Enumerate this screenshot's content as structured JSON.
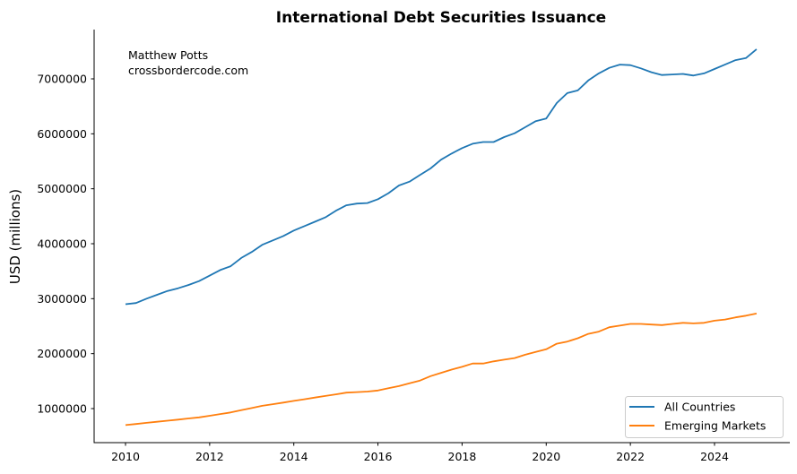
{
  "chart_data": {
    "type": "line",
    "title": "International Debt Securities Issuance",
    "xlabel": "",
    "ylabel": "USD (millions)",
    "annotation": [
      "Matthew Potts",
      "crossbordercode.com"
    ],
    "xlim": [
      2009.27,
      2025.7
    ],
    "ylim": [
      370000,
      7920000
    ],
    "xticks": [
      2010,
      2012,
      2014,
      2016,
      2018,
      2020,
      2022,
      2024
    ],
    "yticks": [
      1000000,
      2000000,
      3000000,
      4000000,
      5000000,
      6000000,
      7000000
    ],
    "ytick_labels": [
      "1000000",
      "2000000",
      "3000000",
      "4000000",
      "5000000",
      "6000000",
      "7000000"
    ],
    "grid": false,
    "legend_position": "lower right",
    "x": [
      2010.0,
      2010.25,
      2010.5,
      2010.75,
      2011.0,
      2011.25,
      2011.5,
      2011.75,
      2012.0,
      2012.25,
      2012.5,
      2012.75,
      2013.0,
      2013.25,
      2013.5,
      2013.75,
      2014.0,
      2014.25,
      2014.5,
      2014.75,
      2015.0,
      2015.25,
      2015.5,
      2015.75,
      2016.0,
      2016.25,
      2016.5,
      2016.75,
      2017.0,
      2017.25,
      2017.5,
      2017.75,
      2018.0,
      2018.25,
      2018.5,
      2018.75,
      2019.0,
      2019.25,
      2019.5,
      2019.75,
      2020.0,
      2020.25,
      2020.5,
      2020.75,
      2021.0,
      2021.25,
      2021.5,
      2021.75,
      2022.0,
      2022.25,
      2022.5,
      2022.75,
      2023.0,
      2023.25,
      2023.5,
      2023.75,
      2024.0,
      2024.25,
      2024.5,
      2024.75,
      2025.0
    ],
    "series": [
      {
        "name": "All Countries",
        "color": "#1f77b4",
        "values": [
          2900000,
          2920000,
          3000000,
          3070000,
          3140000,
          3190000,
          3250000,
          3320000,
          3420000,
          3520000,
          3590000,
          3740000,
          3850000,
          3980000,
          4060000,
          4140000,
          4240000,
          4320000,
          4400000,
          4480000,
          4600000,
          4700000,
          4730000,
          4740000,
          4810000,
          4920000,
          5060000,
          5130000,
          5250000,
          5370000,
          5530000,
          5640000,
          5740000,
          5820000,
          5850000,
          5850000,
          5940000,
          6010000,
          6120000,
          6230000,
          6280000,
          6560000,
          6740000,
          6790000,
          6970000,
          7100000,
          7200000,
          7260000,
          7250000,
          7190000,
          7120000,
          7070000,
          7080000,
          7090000,
          7060000,
          7100000,
          7180000,
          7260000,
          7340000,
          7380000,
          7540000
        ]
      },
      {
        "name": "Emerging Markets",
        "color": "#ff7f0e",
        "values": [
          700000,
          720000,
          740000,
          760000,
          780000,
          800000,
          820000,
          840000,
          870000,
          900000,
          930000,
          970000,
          1010000,
          1050000,
          1080000,
          1110000,
          1140000,
          1170000,
          1200000,
          1230000,
          1260000,
          1290000,
          1300000,
          1310000,
          1330000,
          1370000,
          1410000,
          1460000,
          1510000,
          1590000,
          1650000,
          1710000,
          1760000,
          1820000,
          1820000,
          1860000,
          1890000,
          1920000,
          1980000,
          2030000,
          2080000,
          2180000,
          2220000,
          2280000,
          2360000,
          2400000,
          2480000,
          2510000,
          2540000,
          2540000,
          2530000,
          2520000,
          2540000,
          2560000,
          2550000,
          2560000,
          2600000,
          2620000,
          2660000,
          2690000,
          2730000
        ]
      }
    ]
  },
  "title": "International Debt Securities Issuance",
  "ylabel": "USD (millions)",
  "annotation": {
    "line1": "Matthew Potts",
    "line2": "crossbordercode.com"
  },
  "legend": {
    "items": [
      {
        "label": "All Countries",
        "color": "#1f77b4"
      },
      {
        "label": "Emerging Markets",
        "color": "#ff7f0e"
      }
    ]
  },
  "xticks": [
    "2010",
    "2012",
    "2014",
    "2016",
    "2018",
    "2020",
    "2022",
    "2024"
  ],
  "yticks": [
    "1000000",
    "2000000",
    "3000000",
    "4000000",
    "5000000",
    "6000000",
    "7000000"
  ]
}
